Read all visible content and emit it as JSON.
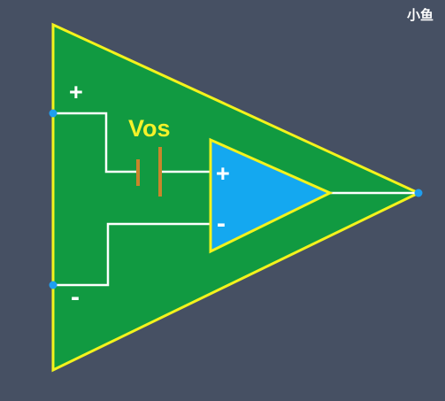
{
  "diagram": {
    "outer_label_plus": "+",
    "outer_label_minus": "-",
    "offset_label": "Vos",
    "inner_label_plus": "+",
    "inner_label_minus": "-"
  },
  "watermark": "小鱼",
  "colors": {
    "background": "#465063",
    "outer_fill": "#119a41",
    "outer_stroke": "#f3f31c",
    "inner_fill": "#14a8f0",
    "inner_stroke": "#f3f31c",
    "wire": "#ffffff",
    "terminal": "#1f9ff0",
    "battery_plate": "#c9852b",
    "offset_label": "#f4f22a"
  }
}
